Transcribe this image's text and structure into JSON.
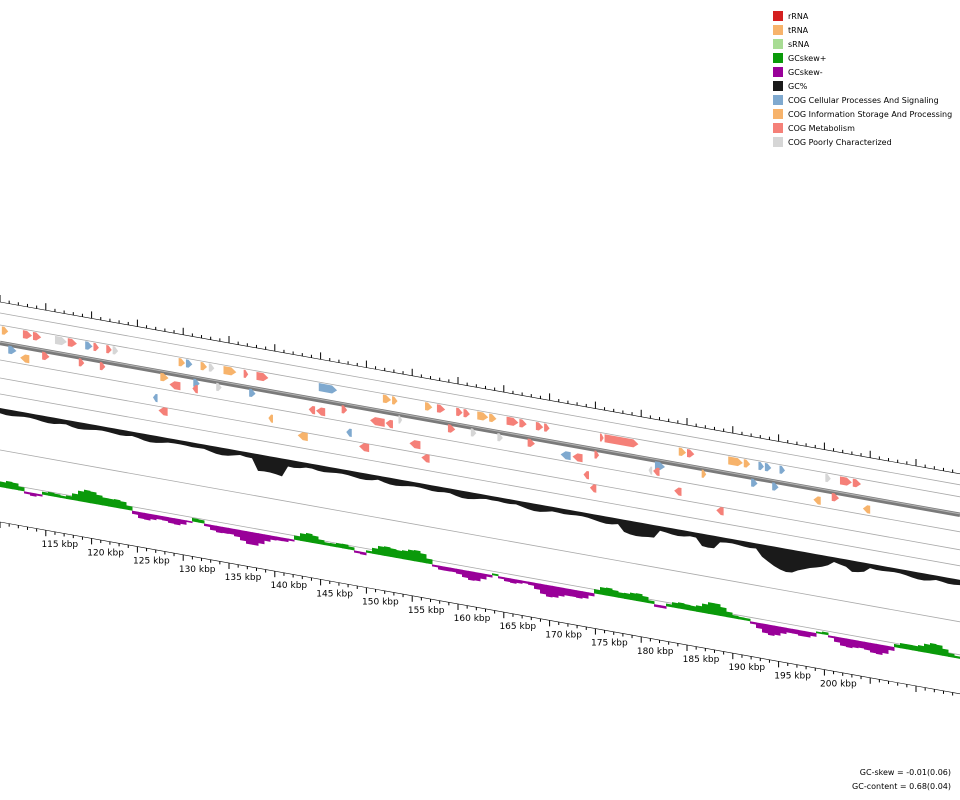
{
  "legend": {
    "items": [
      {
        "label": "rRNA",
        "color": "#d42020"
      },
      {
        "label": "tRNA",
        "color": "#f7b36b"
      },
      {
        "label": "sRNA",
        "color": "#a8dc94"
      },
      {
        "label": "GCskew+",
        "color": "#0a9a0a"
      },
      {
        "label": "GCskew-",
        "color": "#990099"
      },
      {
        "label": "GC%",
        "color": "#1a1a1a"
      },
      {
        "label": "COG Cellular Processes And Signaling",
        "color": "#7fa9cf"
      },
      {
        "label": "COG Information Storage And Processing",
        "color": "#f7b36b"
      },
      {
        "label": "COG Metabolism",
        "color": "#f58078"
      },
      {
        "label": "COG Poorly Characterized",
        "color": "#d6d6d6"
      }
    ]
  },
  "scale": {
    "labels": [
      "115 kbp",
      "120 kbp",
      "125 kbp",
      "130 kbp",
      "135 kbp",
      "140 kbp",
      "145 kbp",
      "150 kbp",
      "155 kbp",
      "160 kbp",
      "165 kbp",
      "170 kbp",
      "175 kbp",
      "180 kbp",
      "185 kbp",
      "190 kbp",
      "195 kbp",
      "200 kbp"
    ]
  },
  "stats": {
    "gc_skew": "GC-skew = -0.01(0.06)",
    "gc_content": "GC-content = 0.68(0.04)"
  },
  "chart_data": {
    "type": "circular genome map (zoomed segment)",
    "range_kbp": [
      110,
      205
    ],
    "tracks": [
      "forward CDS",
      "backbone",
      "reverse CDS",
      "GC%",
      "GC skew"
    ],
    "features": [
      {
        "start": 110.2,
        "end": 110.9,
        "cog": "info",
        "strand": "+"
      },
      {
        "start": 110.9,
        "end": 111.8,
        "cog": "cell",
        "strand": "+"
      },
      {
        "start": 112.5,
        "end": 113.5,
        "cog": "meta",
        "strand": "+"
      },
      {
        "start": 113.6,
        "end": 114.5,
        "cog": "meta",
        "strand": "+"
      },
      {
        "start": 114.6,
        "end": 115.4,
        "cog": "meta",
        "strand": "+"
      },
      {
        "start": 116.0,
        "end": 117.3,
        "cog": "poor",
        "strand": "+"
      },
      {
        "start": 117.4,
        "end": 118.4,
        "cog": "meta",
        "strand": "+"
      },
      {
        "start": 118.6,
        "end": 119.2,
        "cog": "meta",
        "strand": "+"
      },
      {
        "start": 119.3,
        "end": 120.1,
        "cog": "cell",
        "strand": "+"
      },
      {
        "start": 120.2,
        "end": 120.8,
        "cog": "meta",
        "strand": "+"
      },
      {
        "start": 120.9,
        "end": 121.5,
        "cog": "meta",
        "strand": "+"
      },
      {
        "start": 121.6,
        "end": 122.2,
        "cog": "meta",
        "strand": "+"
      },
      {
        "start": 122.3,
        "end": 122.9,
        "cog": "poor",
        "strand": "+"
      },
      {
        "start": 127.5,
        "end": 128.4,
        "cog": "info",
        "strand": "+"
      },
      {
        "start": 129.5,
        "end": 130.2,
        "cog": "info",
        "strand": "+"
      },
      {
        "start": 130.3,
        "end": 131.0,
        "cog": "cell",
        "strand": "+"
      },
      {
        "start": 131.1,
        "end": 131.8,
        "cog": "cell",
        "strand": "+"
      },
      {
        "start": 131.9,
        "end": 132.6,
        "cog": "info",
        "strand": "+"
      },
      {
        "start": 132.8,
        "end": 133.4,
        "cog": "poor",
        "strand": "+"
      },
      {
        "start": 133.6,
        "end": 134.2,
        "cog": "poor",
        "strand": "+"
      },
      {
        "start": 134.4,
        "end": 135.8,
        "cog": "info",
        "strand": "+"
      },
      {
        "start": 136.6,
        "end": 137.1,
        "cog": "meta",
        "strand": "+"
      },
      {
        "start": 137.2,
        "end": 137.9,
        "cog": "cell",
        "strand": "+"
      },
      {
        "start": 138.0,
        "end": 139.3,
        "cog": "meta",
        "strand": "+"
      },
      {
        "start": 144.8,
        "end": 146.8,
        "cog": "cell",
        "strand": "+"
      },
      {
        "start": 147.3,
        "end": 147.9,
        "cog": "meta",
        "strand": "+"
      },
      {
        "start": 151.8,
        "end": 152.7,
        "cog": "info",
        "strand": "+"
      },
      {
        "start": 152.8,
        "end": 153.4,
        "cog": "info",
        "strand": "+"
      },
      {
        "start": 153.5,
        "end": 153.9,
        "cog": "poor",
        "strand": "+"
      },
      {
        "start": 156.4,
        "end": 157.2,
        "cog": "info",
        "strand": "+"
      },
      {
        "start": 157.7,
        "end": 158.6,
        "cog": "meta",
        "strand": "+"
      },
      {
        "start": 158.9,
        "end": 159.7,
        "cog": "meta",
        "strand": "+"
      },
      {
        "start": 159.8,
        "end": 160.5,
        "cog": "meta",
        "strand": "+"
      },
      {
        "start": 160.6,
        "end": 161.3,
        "cog": "meta",
        "strand": "+"
      },
      {
        "start": 161.4,
        "end": 162.0,
        "cog": "poor",
        "strand": "+"
      },
      {
        "start": 162.1,
        "end": 163.3,
        "cog": "info",
        "strand": "+"
      },
      {
        "start": 163.4,
        "end": 164.2,
        "cog": "info",
        "strand": "+"
      },
      {
        "start": 164.3,
        "end": 164.9,
        "cog": "poor",
        "strand": "+"
      },
      {
        "start": 165.3,
        "end": 166.6,
        "cog": "meta",
        "strand": "+"
      },
      {
        "start": 166.7,
        "end": 167.5,
        "cog": "meta",
        "strand": "+"
      },
      {
        "start": 167.6,
        "end": 168.4,
        "cog": "meta",
        "strand": "+"
      },
      {
        "start": 168.5,
        "end": 169.3,
        "cog": "meta",
        "strand": "+"
      },
      {
        "start": 169.4,
        "end": 170.0,
        "cog": "meta",
        "strand": "+"
      },
      {
        "start": 174.9,
        "end": 175.4,
        "cog": "meta",
        "strand": "+"
      },
      {
        "start": 175.5,
        "end": 175.9,
        "cog": "meta",
        "strand": "+"
      },
      {
        "start": 176.0,
        "end": 179.7,
        "cog": "meta",
        "strand": "+"
      },
      {
        "start": 181.5,
        "end": 182.6,
        "cog": "cell",
        "strand": "+"
      },
      {
        "start": 184.1,
        "end": 184.9,
        "cog": "info",
        "strand": "+"
      },
      {
        "start": 185.0,
        "end": 185.8,
        "cog": "meta",
        "strand": "+"
      },
      {
        "start": 186.6,
        "end": 187.1,
        "cog": "info",
        "strand": "+"
      },
      {
        "start": 189.5,
        "end": 191.1,
        "cog": "info",
        "strand": "+"
      },
      {
        "start": 191.2,
        "end": 191.9,
        "cog": "info",
        "strand": "+"
      },
      {
        "start": 192.0,
        "end": 192.7,
        "cog": "cell",
        "strand": "+"
      },
      {
        "start": 192.8,
        "end": 193.4,
        "cog": "cell",
        "strand": "+"
      },
      {
        "start": 193.5,
        "end": 194.2,
        "cog": "cell",
        "strand": "+"
      },
      {
        "start": 194.3,
        "end": 195.0,
        "cog": "cell",
        "strand": "+"
      },
      {
        "start": 195.1,
        "end": 195.7,
        "cog": "cell",
        "strand": "+"
      },
      {
        "start": 200.1,
        "end": 200.7,
        "cog": "poor",
        "strand": "+"
      },
      {
        "start": 200.8,
        "end": 201.6,
        "cog": "meta",
        "strand": "+"
      },
      {
        "start": 201.7,
        "end": 203.0,
        "cog": "meta",
        "strand": "+"
      },
      {
        "start": 203.1,
        "end": 204.0,
        "cog": "meta",
        "strand": "+"
      },
      {
        "start": 112.2,
        "end": 113.2,
        "cog": "info",
        "strand": "-"
      },
      {
        "start": 126.7,
        "end": 127.2,
        "cog": "cell",
        "strand": "-"
      },
      {
        "start": 127.3,
        "end": 128.3,
        "cog": "meta",
        "strand": "-"
      },
      {
        "start": 128.5,
        "end": 129.7,
        "cog": "meta",
        "strand": "-"
      },
      {
        "start": 131.0,
        "end": 131.6,
        "cog": "meta",
        "strand": "-"
      },
      {
        "start": 139.3,
        "end": 139.8,
        "cog": "info",
        "strand": "-"
      },
      {
        "start": 142.5,
        "end": 143.6,
        "cog": "info",
        "strand": "-"
      },
      {
        "start": 143.7,
        "end": 144.4,
        "cog": "meta",
        "strand": "-"
      },
      {
        "start": 144.5,
        "end": 145.5,
        "cog": "meta",
        "strand": "-"
      },
      {
        "start": 147.8,
        "end": 148.4,
        "cog": "cell",
        "strand": "-"
      },
      {
        "start": 149.2,
        "end": 150.3,
        "cog": "meta",
        "strand": "-"
      },
      {
        "start": 150.4,
        "end": 152.0,
        "cog": "meta",
        "strand": "-"
      },
      {
        "start": 152.1,
        "end": 152.9,
        "cog": "meta",
        "strand": "-"
      },
      {
        "start": 154.7,
        "end": 155.9,
        "cog": "meta",
        "strand": "-"
      },
      {
        "start": 156.0,
        "end": 156.9,
        "cog": "meta",
        "strand": "-"
      },
      {
        "start": 171.2,
        "end": 172.3,
        "cog": "cell",
        "strand": "-"
      },
      {
        "start": 172.5,
        "end": 173.6,
        "cog": "meta",
        "strand": "-"
      },
      {
        "start": 173.7,
        "end": 174.3,
        "cog": "meta",
        "strand": "-"
      },
      {
        "start": 174.4,
        "end": 175.1,
        "cog": "meta",
        "strand": "-"
      },
      {
        "start": 180.8,
        "end": 181.2,
        "cog": "poor",
        "strand": "-"
      },
      {
        "start": 181.3,
        "end": 182.0,
        "cog": "meta",
        "strand": "-"
      },
      {
        "start": 183.6,
        "end": 184.4,
        "cog": "meta",
        "strand": "-"
      },
      {
        "start": 188.2,
        "end": 189.0,
        "cog": "meta",
        "strand": "-"
      },
      {
        "start": 198.8,
        "end": 199.6,
        "cog": "info",
        "strand": "-"
      },
      {
        "start": 204.2,
        "end": 205.0,
        "cog": "info",
        "strand": "-"
      }
    ]
  }
}
